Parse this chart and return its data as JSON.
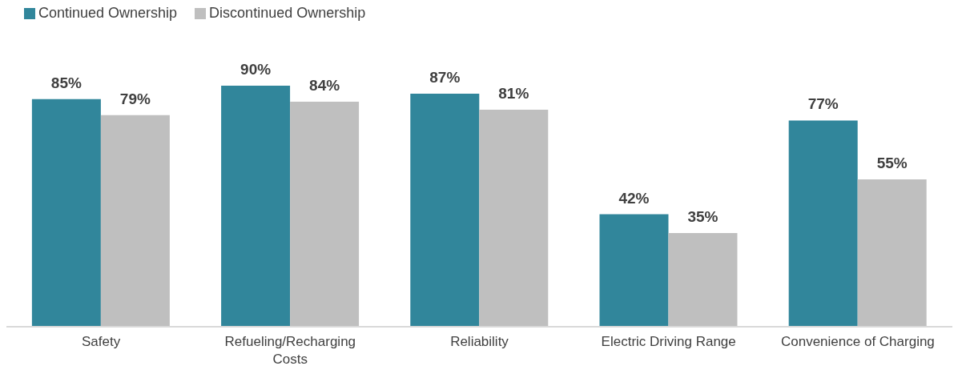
{
  "chart_data": {
    "type": "bar",
    "categories": [
      "Safety",
      "Refueling/Recharging Costs",
      "Reliability",
      "Electric Driving Range",
      "Convenience of Charging"
    ],
    "series": [
      {
        "name": "Continued Ownership",
        "color": "#31869b",
        "values": [
          85,
          90,
          87,
          42,
          77
        ],
        "value_labels": [
          "85%",
          "90%",
          "87%",
          "42%",
          "77%"
        ]
      },
      {
        "name": "Discontinued Ownership",
        "color": "#bfbfbf",
        "values": [
          79,
          84,
          81,
          35,
          55
        ],
        "value_labels": [
          "79%",
          "84%",
          "81%",
          "35%",
          "55%"
        ]
      }
    ],
    "grid": false,
    "legend": "top left"
  }
}
